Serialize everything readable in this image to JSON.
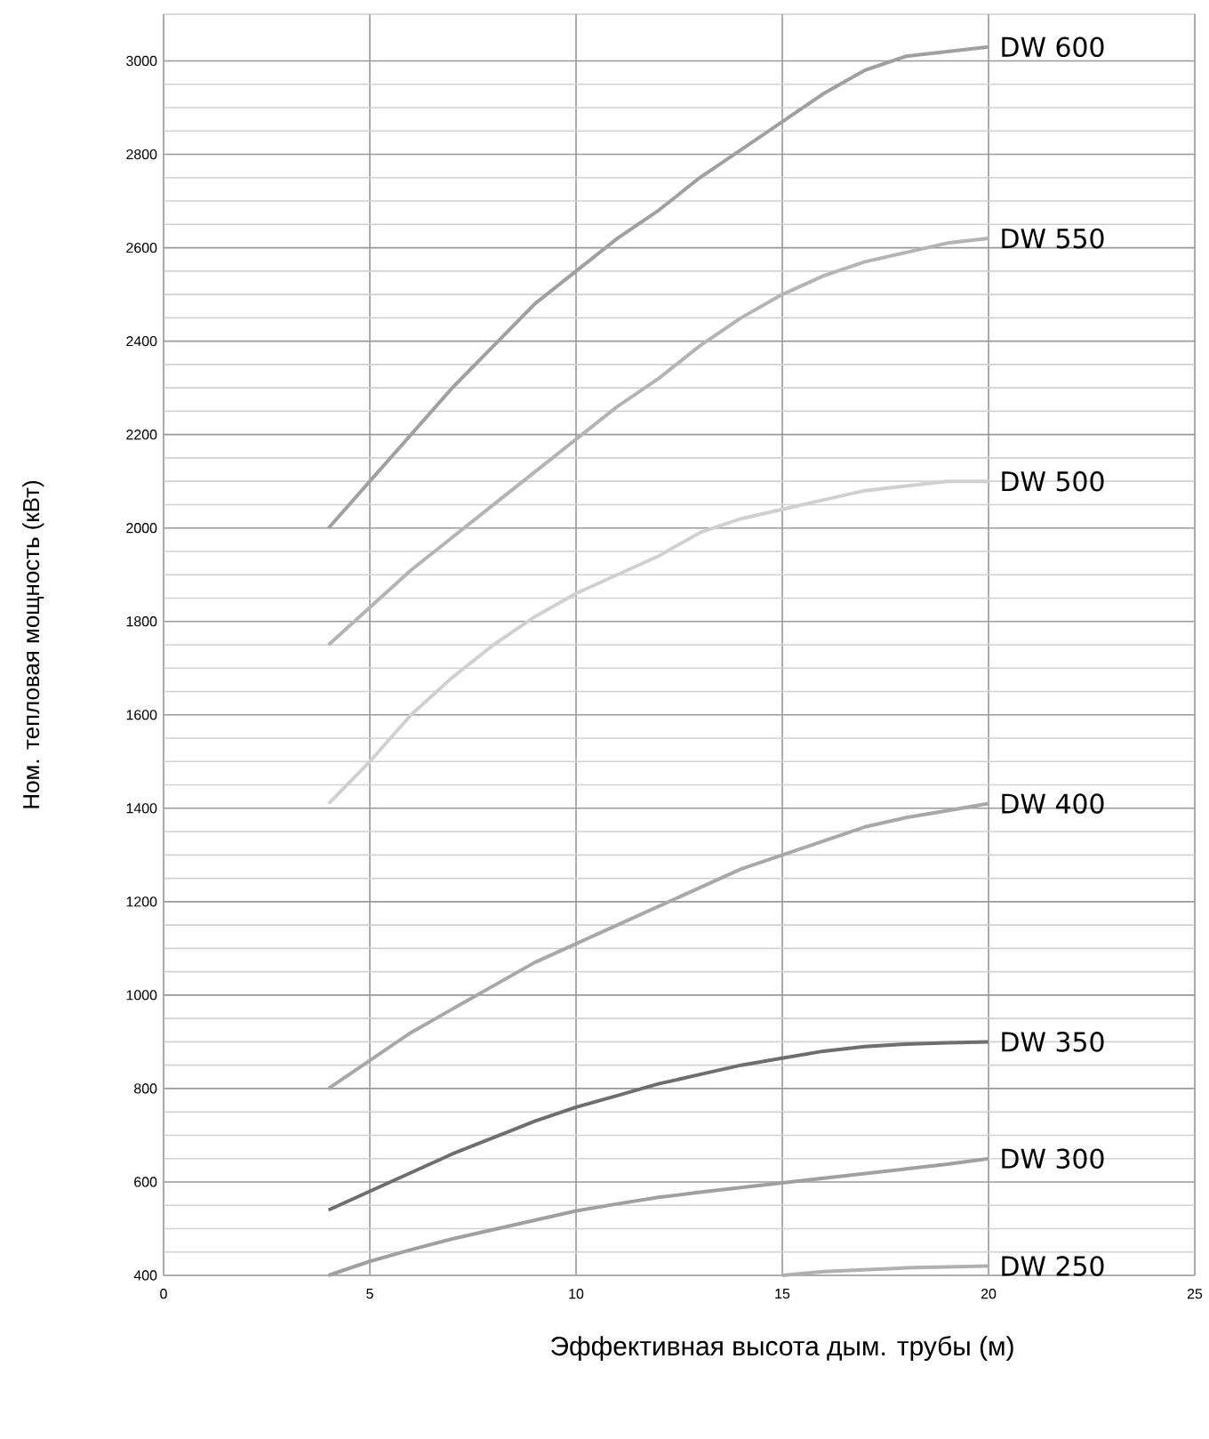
{
  "chart_data": {
    "type": "line",
    "xlabel": "Эффективная высота дым. трубы (м)",
    "ylabel": "Ном. тепловая мощность (кВт)",
    "xlim": [
      0,
      25
    ],
    "xticks": [
      0,
      5,
      10,
      15,
      20,
      25
    ],
    "ylim": [
      400,
      3100
    ],
    "yticks": [
      400,
      600,
      800,
      1000,
      1200,
      1400,
      1600,
      1800,
      2000,
      2200,
      2400,
      2600,
      2800,
      3000
    ],
    "grid": true,
    "legend": false,
    "marker": "none",
    "line_style": "solid",
    "series": [
      {
        "name": "DW 600",
        "color": "#a0a0a0",
        "x": [
          4,
          5,
          6,
          7,
          8,
          9,
          10,
          11,
          12,
          13,
          14,
          15,
          16,
          17,
          18,
          19,
          20
        ],
        "values": [
          2000,
          2100,
          2200,
          2300,
          2390,
          2480,
          2550,
          2620,
          2680,
          2750,
          2810,
          2870,
          2930,
          2980,
          3010,
          3020,
          3030
        ]
      },
      {
        "name": "DW 550",
        "color": "#b4b4b4",
        "x": [
          4,
          5,
          6,
          7,
          8,
          9,
          10,
          11,
          12,
          13,
          14,
          15,
          16,
          17,
          18,
          19,
          20
        ],
        "values": [
          1750,
          1830,
          1910,
          1980,
          2050,
          2120,
          2190,
          2260,
          2320,
          2390,
          2450,
          2500,
          2540,
          2570,
          2590,
          2610,
          2620
        ]
      },
      {
        "name": "DW 500",
        "color": "#d0d0d0",
        "x": [
          4,
          5,
          6,
          7,
          8,
          9,
          10,
          11,
          12,
          13,
          14,
          15,
          16,
          17,
          18,
          19,
          20
        ],
        "values": [
          1410,
          1500,
          1600,
          1680,
          1750,
          1810,
          1860,
          1900,
          1940,
          1990,
          2020,
          2040,
          2060,
          2080,
          2090,
          2100,
          2100
        ]
      },
      {
        "name": "DW 400",
        "color": "#a8a8a8",
        "x": [
          4,
          5,
          6,
          7,
          8,
          9,
          10,
          11,
          12,
          13,
          14,
          15,
          16,
          17,
          18,
          19,
          20
        ],
        "values": [
          800,
          860,
          920,
          970,
          1020,
          1070,
          1110,
          1150,
          1190,
          1230,
          1270,
          1300,
          1330,
          1360,
          1380,
          1395,
          1410
        ]
      },
      {
        "name": "DW 350",
        "color": "#6e6e6e",
        "x": [
          4,
          5,
          6,
          7,
          8,
          9,
          10,
          11,
          12,
          13,
          14,
          15,
          16,
          17,
          18,
          19,
          20
        ],
        "values": [
          540,
          580,
          620,
          660,
          695,
          730,
          760,
          785,
          810,
          830,
          850,
          865,
          880,
          890,
          895,
          898,
          900
        ]
      },
      {
        "name": "DW 300",
        "color": "#a0a0a0",
        "x": [
          4,
          5,
          6,
          7,
          8,
          9,
          10,
          11,
          12,
          13,
          14,
          15,
          16,
          17,
          18,
          19,
          20
        ],
        "values": [
          400,
          430,
          455,
          478,
          498,
          518,
          538,
          553,
          567,
          578,
          588,
          598,
          608,
          618,
          628,
          638,
          650
        ]
      },
      {
        "name": "DW 250",
        "color": "#b0b0b0",
        "x": [
          15,
          16,
          17,
          18,
          19,
          20
        ],
        "values": [
          400,
          408,
          412,
          416,
          418,
          420
        ]
      }
    ]
  }
}
